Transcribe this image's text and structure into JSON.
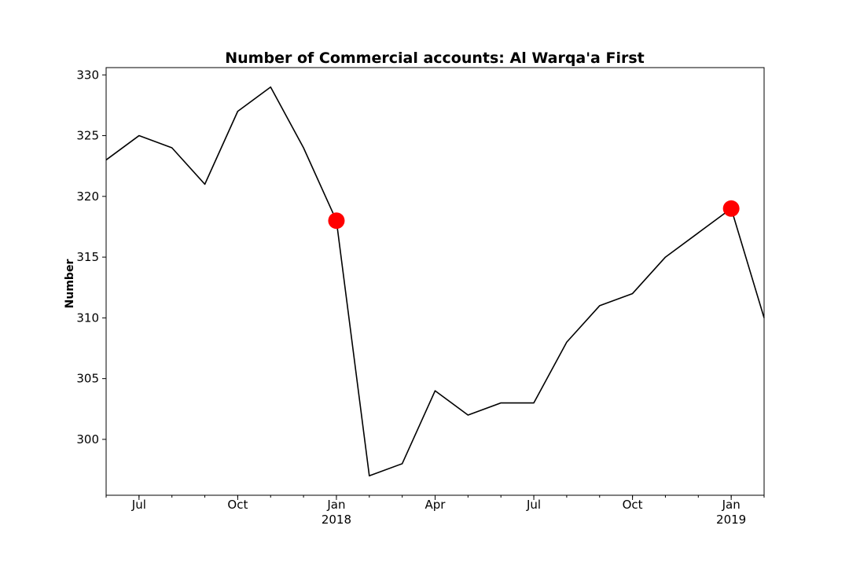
{
  "chart_data": {
    "type": "line",
    "title": "Number of Commercial accounts: Al Warqa'a First",
    "xlabel": "",
    "ylabel": "Number",
    "x": [
      "2017-06",
      "2017-07",
      "2017-08",
      "2017-09",
      "2017-10",
      "2017-11",
      "2017-12",
      "2018-01",
      "2018-02",
      "2018-03",
      "2018-04",
      "2018-05",
      "2018-06",
      "2018-07",
      "2018-08",
      "2018-09",
      "2018-10",
      "2018-11",
      "2018-12",
      "2019-01",
      "2019-02"
    ],
    "series": [
      {
        "values": [
          323,
          325,
          324,
          321,
          327,
          329,
          324,
          318,
          297,
          298,
          304,
          302,
          303,
          303,
          308,
          311,
          312,
          315,
          317,
          319,
          310
        ]
      }
    ],
    "highlighted_points": [
      {
        "x": "2018-01",
        "y": 318,
        "color": "#ff0000"
      },
      {
        "x": "2019-01",
        "y": 319,
        "color": "#ff0000"
      }
    ],
    "xlim": [
      "2017-06",
      "2019-02"
    ],
    "ylim": [
      295.4,
      330.6
    ],
    "y_ticks": [
      300,
      305,
      310,
      315,
      320,
      325,
      330
    ],
    "x_ticks": [
      {
        "x": "2017-07",
        "label": "Jul",
        "sublabel": ""
      },
      {
        "x": "2017-10",
        "label": "Oct",
        "sublabel": ""
      },
      {
        "x": "2018-01",
        "label": "Jan",
        "sublabel": "2018"
      },
      {
        "x": "2018-04",
        "label": "Apr",
        "sublabel": ""
      },
      {
        "x": "2018-07",
        "label": "Jul",
        "sublabel": ""
      },
      {
        "x": "2018-10",
        "label": "Oct",
        "sublabel": ""
      },
      {
        "x": "2019-01",
        "label": "Jan",
        "sublabel": "2019"
      }
    ],
    "grid": false,
    "line_color": "#000000"
  }
}
